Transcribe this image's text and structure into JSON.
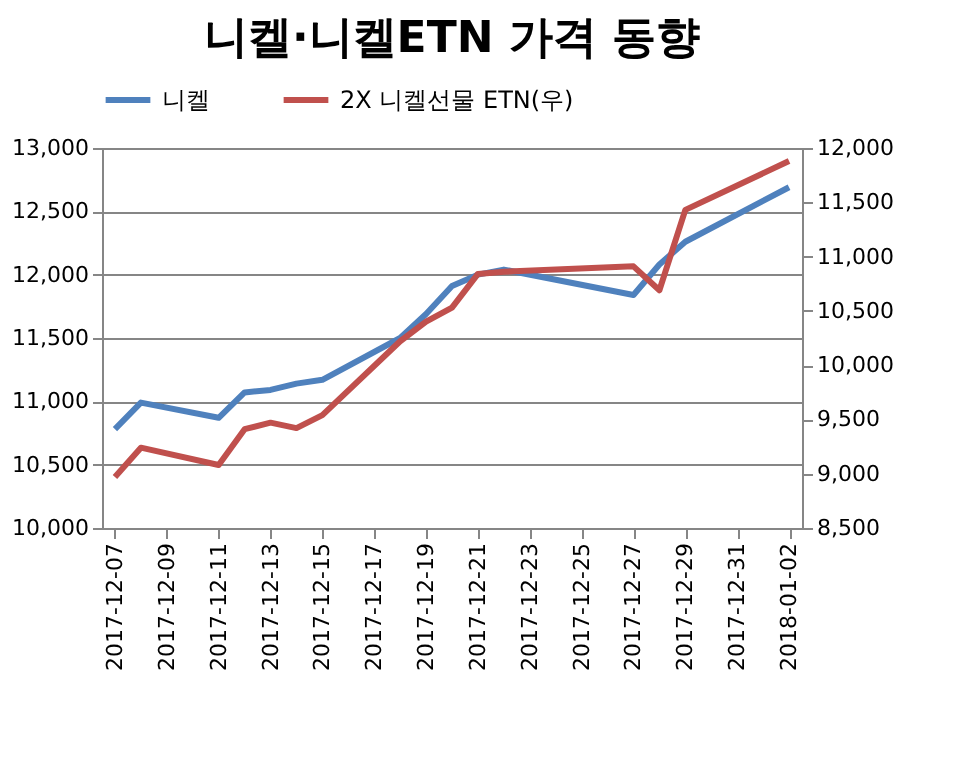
{
  "chart_data": {
    "type": "line",
    "title": "니켈·니켈ETN 가격 동향",
    "x": [
      "2017-12-07",
      "2017-12-08",
      "2017-12-11",
      "2017-12-12",
      "2017-12-13",
      "2017-12-14",
      "2017-12-15",
      "2017-12-18",
      "2017-12-19",
      "2017-12-20",
      "2017-12-21",
      "2017-12-22",
      "2017-12-27",
      "2017-12-28",
      "2017-12-29",
      "2018-01-02"
    ],
    "series": [
      {
        "name": "니켈",
        "color": "#4f81bd",
        "values": [
          10780,
          10990,
          10870,
          11070,
          11090,
          11140,
          11170,
          11500,
          11690,
          11910,
          12000,
          12040,
          11840,
          12080,
          12260,
          12690
        ]
      },
      {
        "name": "2X 니켈선물 ETN(우)",
        "color": "#c0504d",
        "axis": "y2",
        "values": [
          8970,
          9240,
          9080,
          9410,
          9470,
          9420,
          9540,
          10220,
          10400,
          10530,
          10840,
          10860,
          10910,
          10690,
          11430,
          11880
        ]
      }
    ],
    "xlim": [
      "2017-12-06T12:00",
      "2018-01-02T12:00"
    ],
    "xticks": [
      "2017-12-07",
      "2017-12-09",
      "2017-12-11",
      "2017-12-13",
      "2017-12-15",
      "2017-12-17",
      "2017-12-19",
      "2017-12-21",
      "2017-12-23",
      "2017-12-25",
      "2017-12-27",
      "2017-12-29",
      "2017-12-31",
      "2018-01-02"
    ],
    "ylim": [
      10000,
      13000
    ],
    "yticks": [
      {
        "value": 10000,
        "label": "10,000"
      },
      {
        "value": 10500,
        "label": "10,500"
      },
      {
        "value": 11000,
        "label": "11,000"
      },
      {
        "value": 11500,
        "label": "11,500"
      },
      {
        "value": 12000,
        "label": "12,000"
      },
      {
        "value": 12500,
        "label": "12,500"
      },
      {
        "value": 13000,
        "label": "13,000"
      }
    ],
    "y2lim": [
      8500,
      12000
    ],
    "y2ticks": [
      {
        "value": 8500,
        "label": "8,500"
      },
      {
        "value": 9000,
        "label": "9,000"
      },
      {
        "value": 9500,
        "label": "9,500"
      },
      {
        "value": 10000,
        "label": "10,000"
      },
      {
        "value": 10500,
        "label": "10,500"
      },
      {
        "value": 11000,
        "label": "11,000"
      },
      {
        "value": 11500,
        "label": "11,500"
      },
      {
        "value": 12000,
        "label": "12,000"
      }
    ],
    "grid": "y",
    "legend": "top",
    "line_style": "solid"
  }
}
